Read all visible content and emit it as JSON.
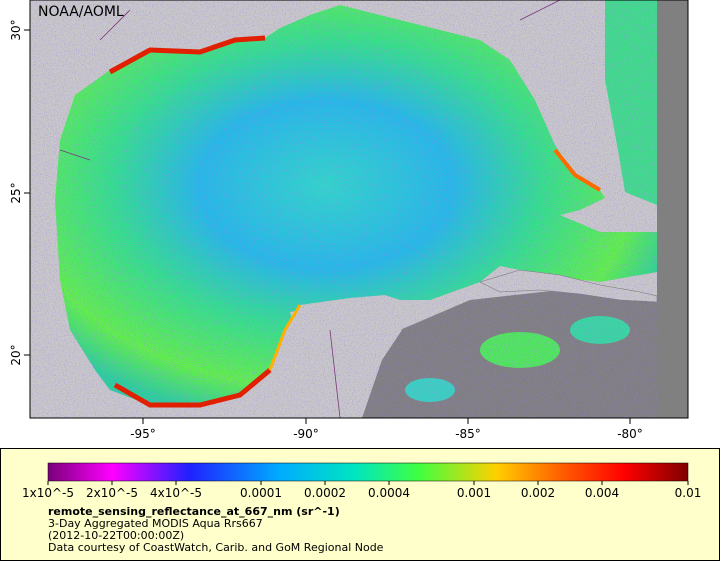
{
  "map": {
    "credit": "NOAA/AOML",
    "lon_ticks": [
      "-95°",
      "-90°",
      "-85°",
      "-80°"
    ],
    "lat_ticks": [
      "30°",
      "25°",
      "20°"
    ],
    "colorbar_ticks": [
      "1x10^-5",
      "2x10^-5",
      "4x10^-5",
      "0.0001",
      "0.0002",
      "0.0004",
      "0.001",
      "0.002",
      "0.004",
      "0.01"
    ],
    "variable": "remote_sensing_reflectance_at_667_nm (sr^-1)",
    "description": "3-Day Aggregated MODIS Aqua Rrs667",
    "time": "(2012-10-22T00:00:00Z)",
    "courtesy": "Data courtesy of CoastWatch, Carib. and GoM Regional Node"
  }
}
